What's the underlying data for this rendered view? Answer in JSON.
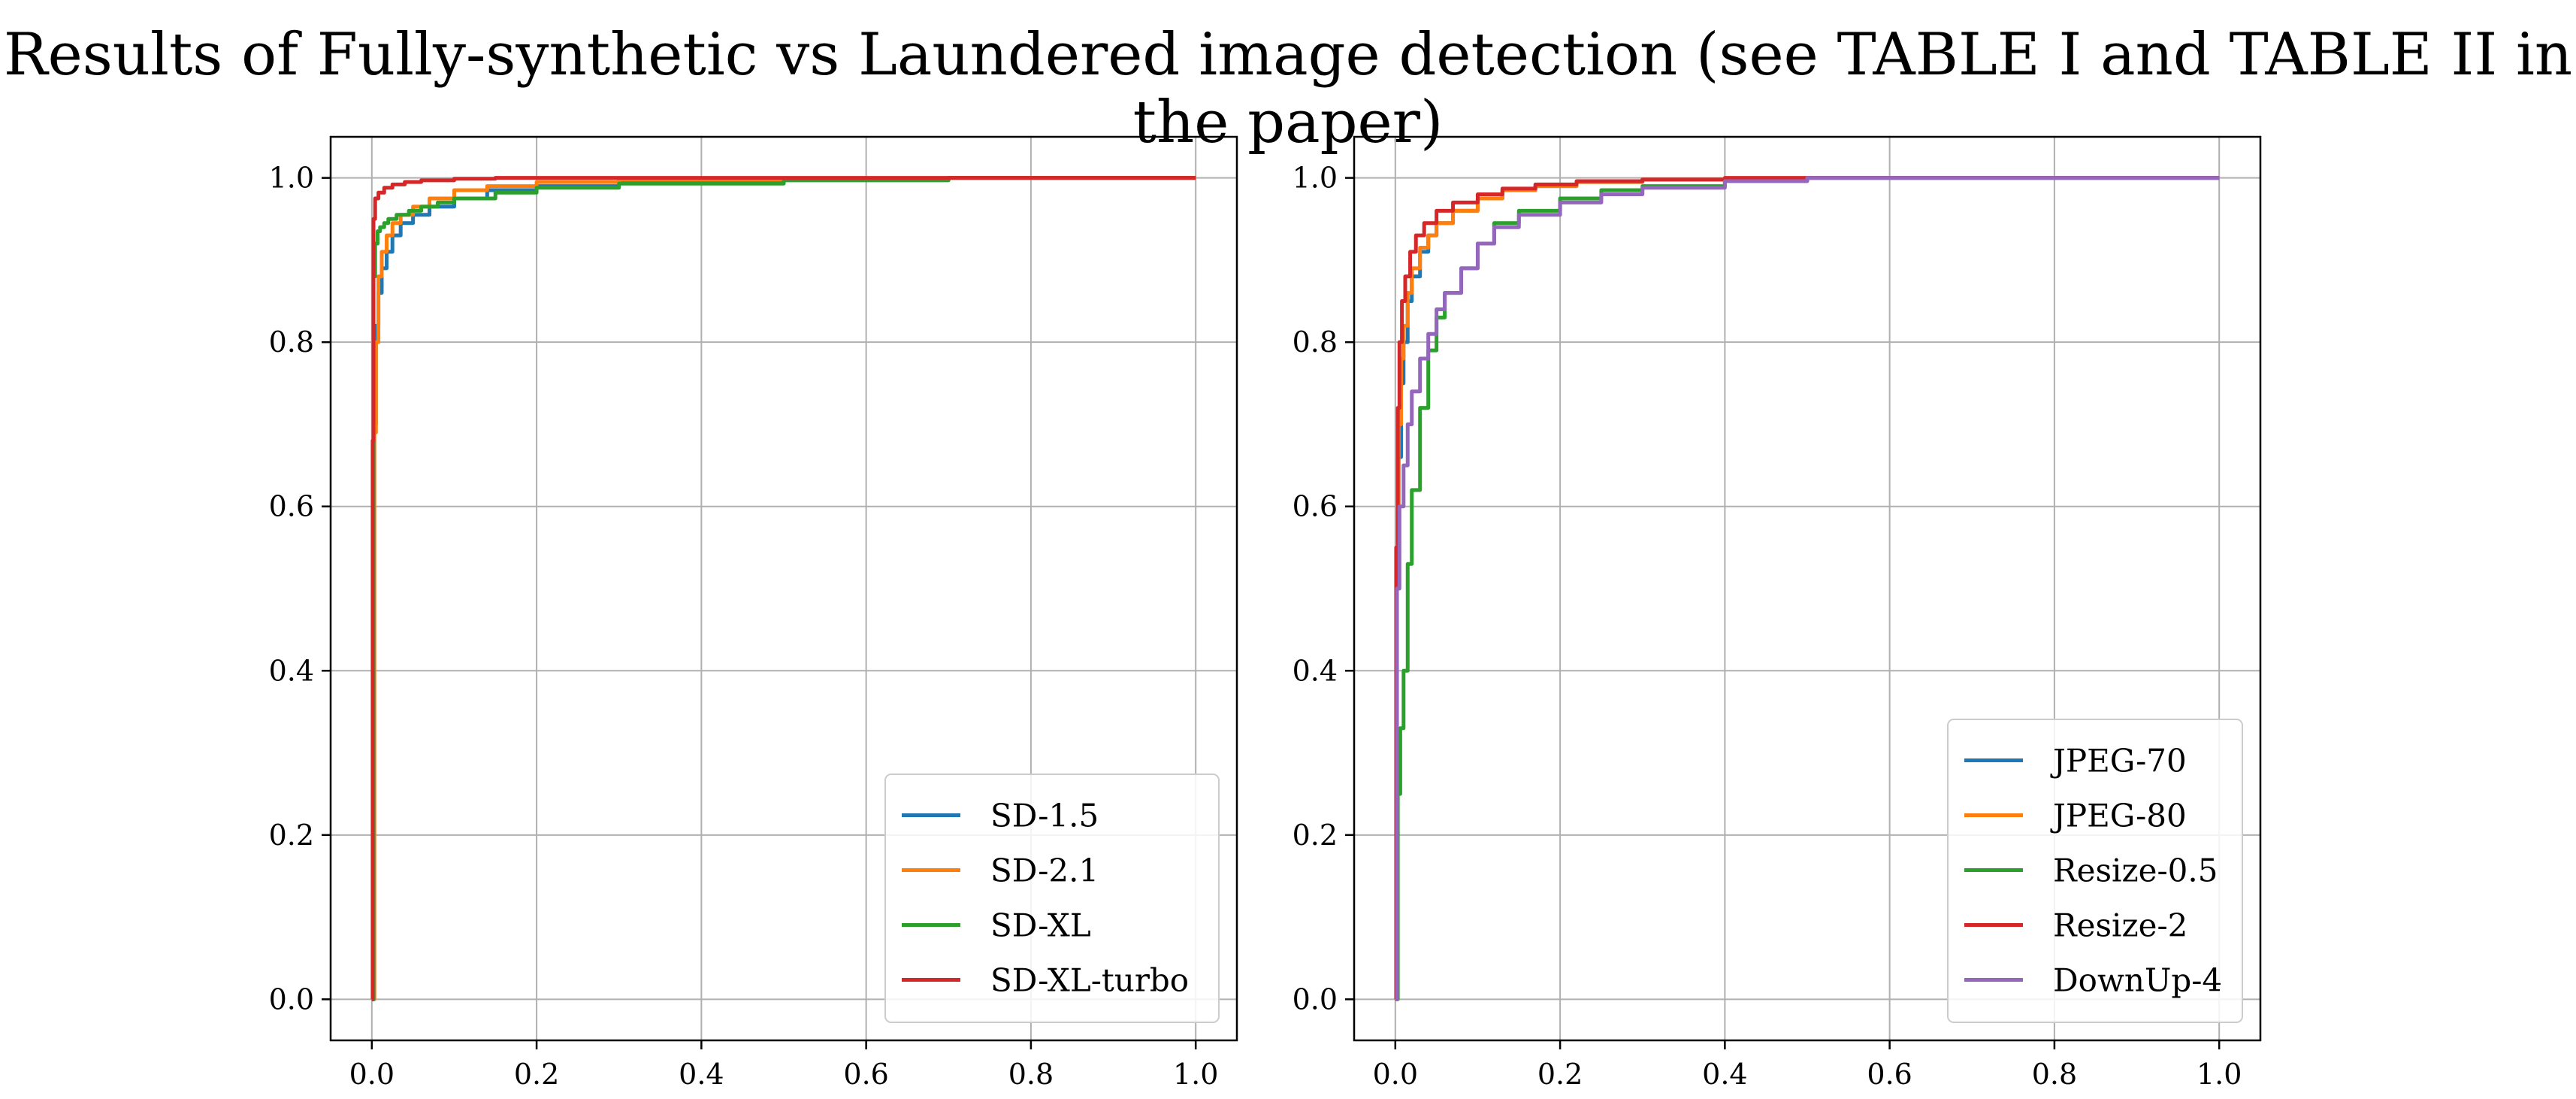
{
  "title": "Results of Fully-synthetic vs Laundered image detection (see TABLE I and TABLE II in the paper)",
  "chart_data": [
    {
      "type": "line",
      "title": "",
      "xlabel": "",
      "ylabel": "",
      "xlim": [
        -0.05,
        1.05
      ],
      "ylim": [
        -0.05,
        1.05
      ],
      "grid": true,
      "legend": "lower-right",
      "xticks": [
        "0.0",
        "0.2",
        "0.4",
        "0.6",
        "0.8",
        "1.0"
      ],
      "yticks": [
        "0.0",
        "0.2",
        "0.4",
        "0.6",
        "0.8",
        "1.0"
      ],
      "series": [
        {
          "name": "SD-1.5",
          "color": "#1f77b4",
          "x": [
            0,
            0.003,
            0.005,
            0.008,
            0.012,
            0.018,
            0.025,
            0.035,
            0.05,
            0.07,
            0.1,
            0.14,
            0.2,
            0.3,
            0.5,
            0.7,
            1.0
          ],
          "y": [
            0,
            0.7,
            0.82,
            0.86,
            0.89,
            0.91,
            0.93,
            0.945,
            0.955,
            0.965,
            0.975,
            0.985,
            0.99,
            0.995,
            0.998,
            1.0,
            1.0
          ]
        },
        {
          "name": "SD-2.1",
          "color": "#ff7f0e",
          "x": [
            0,
            0.003,
            0.005,
            0.008,
            0.012,
            0.018,
            0.025,
            0.035,
            0.05,
            0.07,
            0.1,
            0.14,
            0.2,
            0.3,
            0.5,
            0.7,
            1.0
          ],
          "y": [
            0,
            0.69,
            0.8,
            0.88,
            0.91,
            0.93,
            0.945,
            0.955,
            0.965,
            0.975,
            0.985,
            0.99,
            0.995,
            0.998,
            0.999,
            1.0,
            1.0
          ]
        },
        {
          "name": "SD-XL",
          "color": "#2ca02c",
          "x": [
            0,
            0.002,
            0.004,
            0.007,
            0.01,
            0.015,
            0.02,
            0.03,
            0.045,
            0.06,
            0.08,
            0.1,
            0.15,
            0.2,
            0.3,
            0.5,
            0.7,
            1.0
          ],
          "y": [
            0,
            0.88,
            0.92,
            0.935,
            0.94,
            0.945,
            0.95,
            0.955,
            0.96,
            0.965,
            0.97,
            0.975,
            0.982,
            0.988,
            0.993,
            0.997,
            1.0,
            1.0
          ]
        },
        {
          "name": "SD-XL-turbo",
          "color": "#d62728",
          "x": [
            0,
            0.001,
            0.002,
            0.004,
            0.008,
            0.015,
            0.025,
            0.04,
            0.06,
            0.1,
            0.15,
            0.3,
            1.0
          ],
          "y": [
            0,
            0.68,
            0.95,
            0.975,
            0.982,
            0.988,
            0.992,
            0.995,
            0.997,
            0.999,
            1.0,
            1.0,
            1.0
          ]
        }
      ]
    },
    {
      "type": "line",
      "title": "",
      "xlabel": "",
      "ylabel": "",
      "xlim": [
        -0.05,
        1.05
      ],
      "ylim": [
        -0.05,
        1.05
      ],
      "grid": true,
      "legend": "lower-right",
      "xticks": [
        "0.0",
        "0.2",
        "0.4",
        "0.6",
        "0.8",
        "1.0"
      ],
      "yticks": [
        "0.0",
        "0.2",
        "0.4",
        "0.6",
        "0.8",
        "1.0"
      ],
      "series": [
        {
          "name": "JPEG-70",
          "color": "#1f77b4",
          "x": [
            0,
            0.002,
            0.004,
            0.007,
            0.01,
            0.015,
            0.02,
            0.03,
            0.04,
            0.05,
            0.07,
            0.1,
            0.13,
            0.17,
            0.22,
            0.3,
            0.4,
            0.5,
            1.0
          ],
          "y": [
            0,
            0.5,
            0.66,
            0.75,
            0.8,
            0.85,
            0.88,
            0.91,
            0.93,
            0.945,
            0.96,
            0.975,
            0.985,
            0.99,
            0.995,
            0.998,
            0.999,
            1.0,
            1.0
          ]
        },
        {
          "name": "JPEG-80",
          "color": "#ff7f0e",
          "x": [
            0,
            0.002,
            0.004,
            0.007,
            0.01,
            0.015,
            0.02,
            0.03,
            0.04,
            0.05,
            0.07,
            0.1,
            0.13,
            0.17,
            0.22,
            0.3,
            0.4,
            0.5,
            1.0
          ],
          "y": [
            0,
            0.55,
            0.7,
            0.78,
            0.82,
            0.86,
            0.89,
            0.915,
            0.93,
            0.945,
            0.96,
            0.975,
            0.985,
            0.99,
            0.995,
            0.998,
            0.999,
            1.0,
            1.0
          ]
        },
        {
          "name": "Resize-0.5",
          "color": "#2ca02c",
          "x": [
            0,
            0.003,
            0.006,
            0.01,
            0.015,
            0.02,
            0.03,
            0.04,
            0.05,
            0.06,
            0.08,
            0.1,
            0.12,
            0.15,
            0.2,
            0.25,
            0.3,
            0.4,
            0.5,
            1.0
          ],
          "y": [
            0,
            0.25,
            0.33,
            0.4,
            0.53,
            0.62,
            0.72,
            0.79,
            0.83,
            0.86,
            0.89,
            0.92,
            0.945,
            0.96,
            0.975,
            0.985,
            0.99,
            0.997,
            1.0,
            1.0
          ]
        },
        {
          "name": "Resize-2",
          "color": "#d62728",
          "x": [
            0,
            0.001,
            0.003,
            0.005,
            0.008,
            0.012,
            0.018,
            0.025,
            0.035,
            0.05,
            0.07,
            0.1,
            0.13,
            0.17,
            0.22,
            0.3,
            0.4,
            1.0
          ],
          "y": [
            0,
            0.55,
            0.72,
            0.8,
            0.85,
            0.88,
            0.91,
            0.93,
            0.945,
            0.96,
            0.97,
            0.98,
            0.987,
            0.992,
            0.996,
            0.998,
            1.0,
            1.0
          ]
        },
        {
          "name": "DownUp-4",
          "color": "#9467bd",
          "x": [
            0,
            0.002,
            0.005,
            0.01,
            0.015,
            0.02,
            0.03,
            0.04,
            0.05,
            0.06,
            0.08,
            0.1,
            0.12,
            0.15,
            0.2,
            0.25,
            0.3,
            0.4,
            0.5,
            1.0
          ],
          "y": [
            0,
            0.5,
            0.6,
            0.65,
            0.7,
            0.74,
            0.78,
            0.81,
            0.84,
            0.86,
            0.89,
            0.92,
            0.94,
            0.955,
            0.97,
            0.98,
            0.988,
            0.996,
            1.0,
            1.0
          ]
        }
      ]
    }
  ]
}
